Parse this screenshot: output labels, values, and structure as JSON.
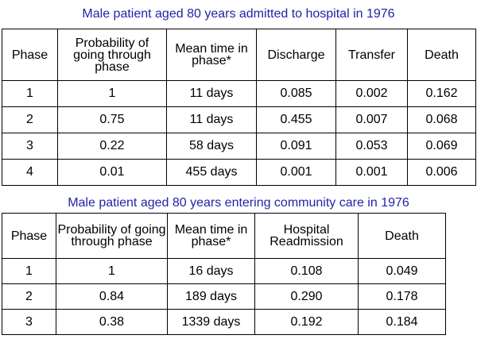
{
  "table1": {
    "title": "Male patient aged 80 years admitted to hospital in 1976",
    "headers": [
      "Phase",
      "Probability of going through phase",
      "Mean time in phase*",
      "Discharge",
      "Transfer",
      "Death"
    ],
    "rows": [
      [
        "1",
        "1",
        "11 days",
        "0.085",
        "0.002",
        "0.162"
      ],
      [
        "2",
        "0.75",
        "11 days",
        "0.455",
        "0.007",
        "0.068"
      ],
      [
        "3",
        "0.22",
        "58 days",
        "0.091",
        "0.053",
        "0.069"
      ],
      [
        "4",
        "0.01",
        "455 days",
        "0.001",
        "0.001",
        "0.006"
      ]
    ]
  },
  "table2": {
    "title": "Male patient aged 80 years entering community care in 1976",
    "headers": [
      "Phase",
      "Probability of going through phase",
      "Mean time in phase*",
      "Hospital Readmission",
      "Death"
    ],
    "rows": [
      [
        "1",
        "1",
        "16 days",
        "0.108",
        "0.049"
      ],
      [
        "2",
        "0.84",
        "189 days",
        "0.290",
        "0.178"
      ],
      [
        "3",
        "0.38",
        "1339 days",
        "0.192",
        "0.184"
      ]
    ]
  }
}
